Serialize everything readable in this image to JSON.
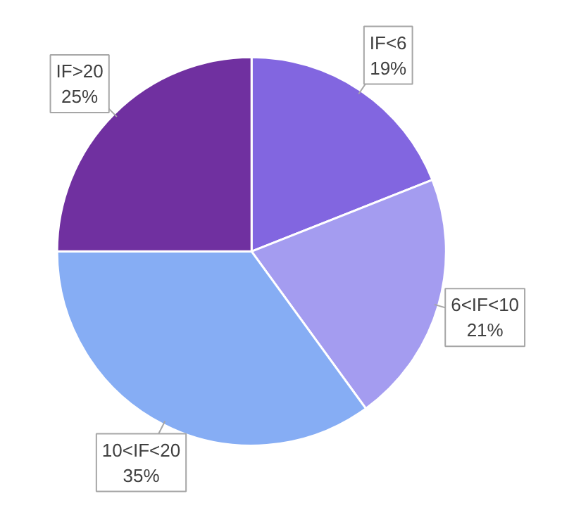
{
  "chart_data": {
    "type": "pie",
    "categories": [
      "IF<6",
      "6<IF<10",
      "10<IF<20",
      "IF>20"
    ],
    "values": [
      19,
      21,
      35,
      25
    ],
    "colors": [
      "#8266e0",
      "#a49cf0",
      "#86adf4",
      "#7030a0"
    ],
    "value_labels": [
      "19%",
      "21%",
      "35%",
      "25%"
    ]
  }
}
